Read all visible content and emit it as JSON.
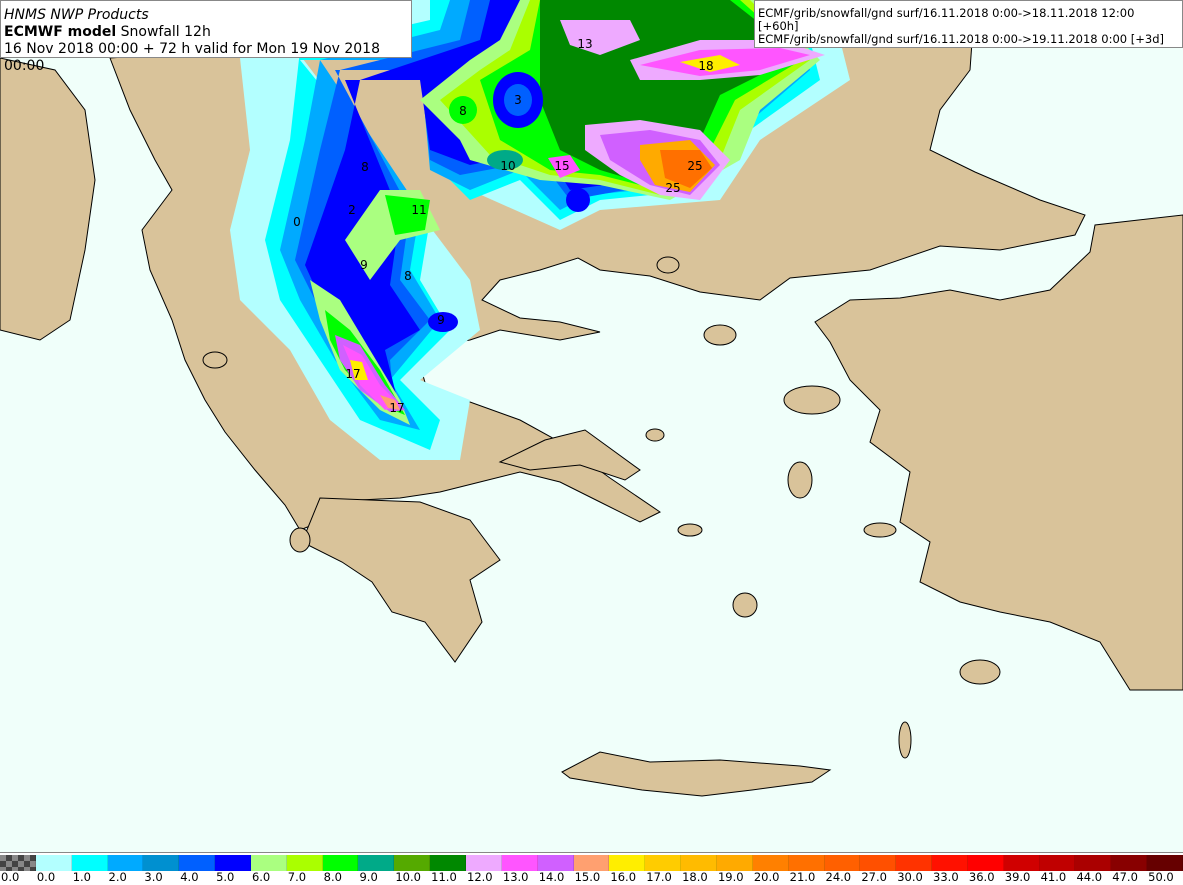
{
  "header": {
    "producer": "HNMS NWP Products",
    "model": "ECMWF model",
    "product": "Snowfall 12h",
    "validity": "16 Nov 2018 00:00 + 72 h valid for Mon 19 Nov 2018 00:00"
  },
  "sources": [
    "ECMF/grib/snowfall/gnd surf/16.11.2018 0:00->18.11.2018 12:00 [+60h]",
    "ECMF/grib/snowfall/gnd surf/16.11.2018 0:00->19.11.2018 0:00 [+3d]"
  ],
  "map_colors": {
    "land": "#d9c39a",
    "sea": "#f0fffa",
    "coast": "#000000"
  },
  "contour_labels": [
    "13",
    "18",
    "3",
    "8",
    "10",
    "15",
    "25",
    "25",
    "8",
    "0",
    "2",
    "11",
    "9",
    "8",
    "9",
    "17",
    "17"
  ],
  "legend": {
    "labels": [
      "0.0",
      "0.0",
      "1.0",
      "2.0",
      "3.0",
      "4.0",
      "5.0",
      "6.0",
      "7.0",
      "8.0",
      "9.0",
      "10.0",
      "11.0",
      "12.0",
      "13.0",
      "14.0",
      "15.0",
      "16.0",
      "17.0",
      "18.0",
      "19.0",
      "20.0",
      "21.0",
      "24.0",
      "27.0",
      "30.0",
      "33.0",
      "36.0",
      "39.0",
      "41.0",
      "44.0",
      "47.0",
      "50.0"
    ],
    "colors": [
      "checker",
      "#b3ffff",
      "#00ffff",
      "#00aaff",
      "#0090d0",
      "#0060ff",
      "#0000ff",
      "#aaff80",
      "#aaff00",
      "#00ff00",
      "#00aa88",
      "#55aa00",
      "#008800",
      "#eeaaff",
      "#ff55ff",
      "#d060ff",
      "#ffa070",
      "#ffee00",
      "#ffcc00",
      "#ffbb00",
      "#ffaa00",
      "#ff8000",
      "#ff7000",
      "#ff6000",
      "#ff5000",
      "#ff3300",
      "#ff1100",
      "#ff0000",
      "#d00000",
      "#c00000",
      "#aa0000",
      "#880000",
      "#660000"
    ]
  }
}
